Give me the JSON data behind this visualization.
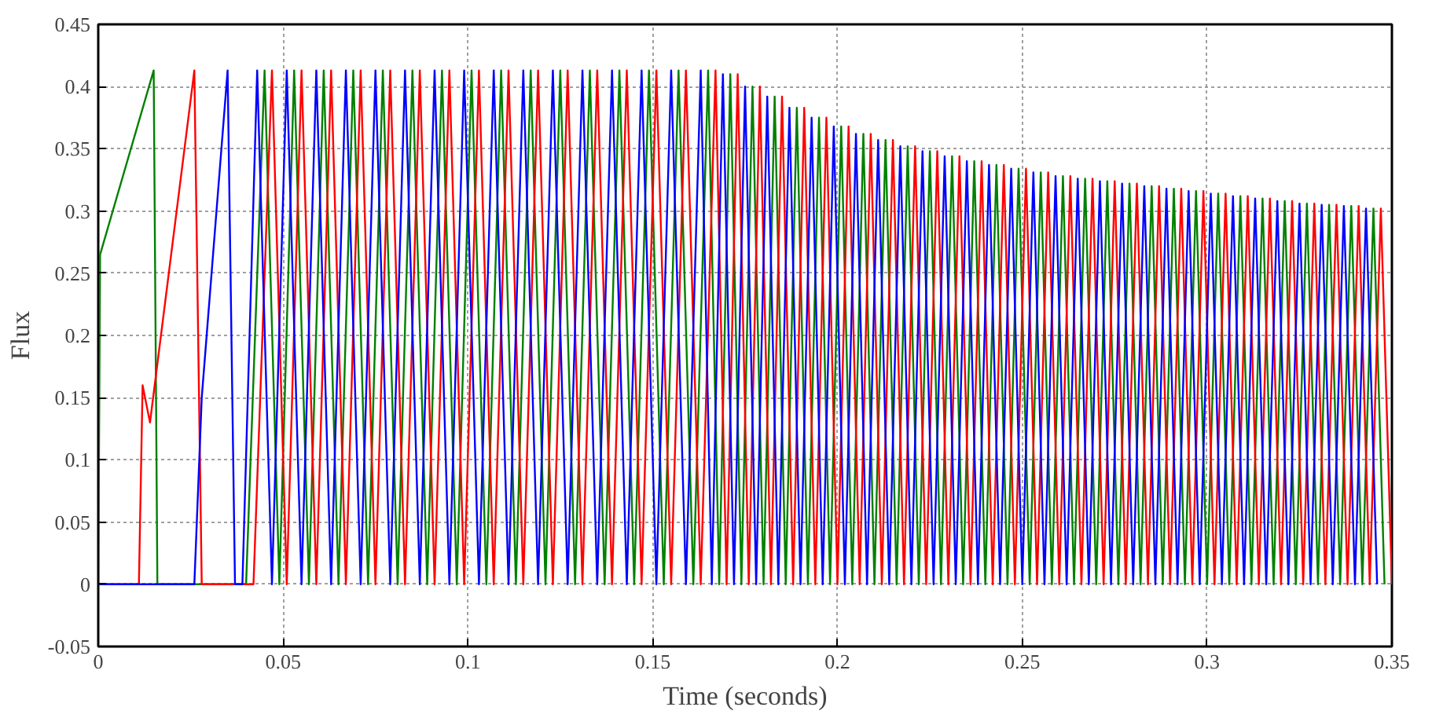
{
  "chart_data": {
    "type": "line",
    "xlabel": "Time (seconds)",
    "ylabel": "Flux",
    "xlim": [
      0,
      0.35
    ],
    "xticks": [
      0,
      0.05,
      0.1,
      0.15,
      0.2,
      0.25,
      0.3,
      0.35
    ],
    "ylim": [
      -0.05,
      0.45
    ],
    "yticks": [
      -0.05,
      0,
      0.05,
      0.1,
      0.15,
      0.2,
      0.25,
      0.3,
      0.35,
      0.4,
      0.45
    ],
    "grid": true,
    "marker": "none",
    "line_style": "solid",
    "series": [
      {
        "color": "#008000",
        "x": [
          0,
          0.0005,
          0.015,
          0.016,
          0.04,
          0.045,
          0.049,
          0.053,
          0.057,
          0.061,
          0.065,
          0.069,
          0.073,
          0.077,
          0.081,
          0.085,
          0.089,
          0.093,
          0.097,
          0.101,
          0.105,
          0.109,
          0.113,
          0.117,
          0.121,
          0.125,
          0.129,
          0.133,
          0.137,
          0.141,
          0.145,
          0.149,
          0.153,
          0.157,
          0.161,
          0.165,
          0.168,
          0.171,
          0.174,
          0.177,
          0.18,
          0.183,
          0.186,
          0.189,
          0.192,
          0.195,
          0.198,
          0.201,
          0.204,
          0.207,
          0.21,
          0.213,
          0.216,
          0.219,
          0.222,
          0.225,
          0.228,
          0.231,
          0.234,
          0.237,
          0.24,
          0.243,
          0.246,
          0.249,
          0.252,
          0.255,
          0.258,
          0.261,
          0.264,
          0.267,
          0.27,
          0.273,
          0.276,
          0.279,
          0.282,
          0.285,
          0.288,
          0.291,
          0.294,
          0.297,
          0.3,
          0.303,
          0.306,
          0.309,
          0.312,
          0.315,
          0.318,
          0.321,
          0.324,
          0.327,
          0.33,
          0.333,
          0.336,
          0.339,
          0.342,
          0.345,
          0.348
        ],
        "values": [
          0,
          0.265,
          0.413,
          0,
          0,
          0.413,
          0,
          0.413,
          0,
          0.413,
          0,
          0.413,
          0,
          0.413,
          0,
          0.413,
          0,
          0.413,
          0,
          0.413,
          0,
          0.413,
          0,
          0.413,
          0,
          0.413,
          0,
          0.413,
          0,
          0.413,
          0,
          0.413,
          0,
          0.413,
          0,
          0.413,
          0,
          0.41,
          0,
          0.4,
          0,
          0.392,
          0,
          0.383,
          0,
          0.375,
          0,
          0.368,
          0,
          0.362,
          0,
          0.357,
          0,
          0.352,
          0,
          0.348,
          0,
          0.344,
          0,
          0.34,
          0,
          0.337,
          0,
          0.334,
          0,
          0.331,
          0,
          0.328,
          0,
          0.326,
          0,
          0.324,
          0,
          0.322,
          0,
          0.32,
          0,
          0.318,
          0,
          0.316,
          0,
          0.314,
          0,
          0.312,
          0,
          0.31,
          0,
          0.308,
          0,
          0.306,
          0,
          0.305,
          0,
          0.304,
          0,
          0.302,
          0
        ]
      },
      {
        "color": "#ff0000",
        "x": [
          0,
          0.011,
          0.012,
          0.014,
          0.026,
          0.028,
          0.042,
          0.047,
          0.051,
          0.055,
          0.059,
          0.063,
          0.067,
          0.071,
          0.075,
          0.079,
          0.083,
          0.087,
          0.091,
          0.095,
          0.099,
          0.103,
          0.107,
          0.111,
          0.115,
          0.119,
          0.123,
          0.127,
          0.131,
          0.135,
          0.139,
          0.143,
          0.147,
          0.151,
          0.155,
          0.159,
          0.163,
          0.167,
          0.17,
          0.173,
          0.176,
          0.179,
          0.182,
          0.185,
          0.188,
          0.191,
          0.194,
          0.197,
          0.2,
          0.203,
          0.206,
          0.209,
          0.212,
          0.215,
          0.218,
          0.221,
          0.224,
          0.227,
          0.23,
          0.233,
          0.236,
          0.239,
          0.242,
          0.245,
          0.248,
          0.251,
          0.254,
          0.257,
          0.26,
          0.263,
          0.266,
          0.269,
          0.272,
          0.275,
          0.278,
          0.281,
          0.284,
          0.287,
          0.29,
          0.293,
          0.296,
          0.299,
          0.302,
          0.305,
          0.308,
          0.311,
          0.314,
          0.317,
          0.32,
          0.323,
          0.326,
          0.329,
          0.332,
          0.335,
          0.338,
          0.341,
          0.344,
          0.347,
          0.35
        ],
        "values": [
          0,
          0,
          0.16,
          0.13,
          0.413,
          0,
          0,
          0.413,
          0,
          0.413,
          0,
          0.413,
          0,
          0.413,
          0,
          0.413,
          0,
          0.413,
          0,
          0.413,
          0,
          0.413,
          0,
          0.413,
          0,
          0.413,
          0,
          0.413,
          0,
          0.413,
          0,
          0.413,
          0,
          0.413,
          0,
          0.413,
          0,
          0.413,
          0,
          0.41,
          0,
          0.4,
          0,
          0.392,
          0,
          0.383,
          0,
          0.375,
          0,
          0.368,
          0,
          0.362,
          0,
          0.357,
          0,
          0.352,
          0,
          0.348,
          0,
          0.344,
          0,
          0.34,
          0,
          0.337,
          0,
          0.334,
          0,
          0.331,
          0,
          0.328,
          0,
          0.326,
          0,
          0.324,
          0,
          0.322,
          0,
          0.32,
          0,
          0.318,
          0,
          0.316,
          0,
          0.314,
          0,
          0.312,
          0,
          0.31,
          0,
          0.308,
          0,
          0.306,
          0,
          0.305,
          0,
          0.304,
          0,
          0.302,
          0
        ]
      },
      {
        "color": "#0000ff",
        "x": [
          0,
          0.026,
          0.028,
          0.035,
          0.037,
          0.039,
          0.043,
          0.047,
          0.051,
          0.055,
          0.059,
          0.063,
          0.067,
          0.071,
          0.075,
          0.079,
          0.083,
          0.087,
          0.091,
          0.095,
          0.099,
          0.103,
          0.107,
          0.111,
          0.115,
          0.119,
          0.123,
          0.127,
          0.131,
          0.135,
          0.139,
          0.143,
          0.147,
          0.151,
          0.155,
          0.159,
          0.163,
          0.166,
          0.169,
          0.172,
          0.175,
          0.178,
          0.181,
          0.184,
          0.187,
          0.19,
          0.193,
          0.196,
          0.199,
          0.202,
          0.205,
          0.208,
          0.211,
          0.214,
          0.217,
          0.22,
          0.223,
          0.226,
          0.229,
          0.232,
          0.235,
          0.238,
          0.241,
          0.244,
          0.247,
          0.25,
          0.253,
          0.256,
          0.259,
          0.262,
          0.265,
          0.268,
          0.271,
          0.274,
          0.277,
          0.28,
          0.283,
          0.286,
          0.289,
          0.292,
          0.295,
          0.298,
          0.301,
          0.304,
          0.307,
          0.31,
          0.313,
          0.316,
          0.319,
          0.322,
          0.325,
          0.328,
          0.331,
          0.334,
          0.337,
          0.34,
          0.343,
          0.346
        ],
        "values": [
          0,
          0,
          0.15,
          0.413,
          0,
          0,
          0.413,
          0,
          0.413,
          0,
          0.413,
          0,
          0.413,
          0,
          0.413,
          0,
          0.413,
          0,
          0.413,
          0,
          0.413,
          0,
          0.413,
          0,
          0.413,
          0,
          0.413,
          0,
          0.413,
          0,
          0.413,
          0,
          0.413,
          0,
          0.413,
          0,
          0.413,
          0,
          0.41,
          0,
          0.4,
          0,
          0.392,
          0,
          0.383,
          0,
          0.375,
          0,
          0.368,
          0,
          0.362,
          0,
          0.357,
          0,
          0.352,
          0,
          0.348,
          0,
          0.344,
          0,
          0.34,
          0,
          0.337,
          0,
          0.334,
          0,
          0.331,
          0,
          0.328,
          0,
          0.326,
          0,
          0.324,
          0,
          0.322,
          0,
          0.32,
          0,
          0.318,
          0,
          0.316,
          0,
          0.314,
          0,
          0.312,
          0,
          0.31,
          0,
          0.308,
          0,
          0.306,
          0,
          0.305,
          0,
          0.304,
          0,
          0.302,
          0
        ]
      }
    ]
  }
}
